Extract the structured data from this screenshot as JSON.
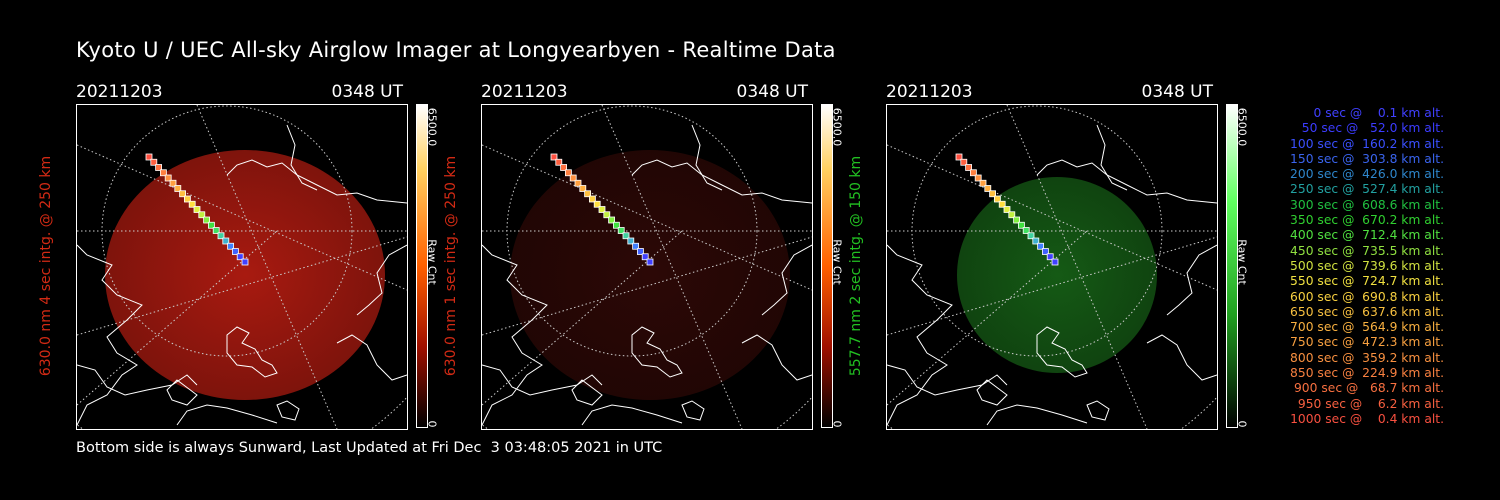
{
  "title": "Kyoto U / UEC All-sky Airglow Imager at Longyearbyen - Realtime Data",
  "panels": [
    {
      "date": "20211203",
      "time": "0348 UT",
      "ylabel": "630.0 nm 4 sec intg. @ 250 km",
      "ylabel_color": "#d22a14",
      "cbar_max": "6500.0",
      "cbar_min": "0",
      "cbar_label": "Raw Cnt",
      "channel": "red",
      "glow_color": "#a81a10"
    },
    {
      "date": "20211203",
      "time": "0348 UT",
      "ylabel": "630.0 nm 1 sec intg. @ 250 km",
      "ylabel_color": "#d22a14",
      "cbar_max": "6500.0",
      "cbar_min": "0",
      "cbar_label": "Raw Cnt",
      "channel": "red",
      "glow_color": "#2c0806"
    },
    {
      "date": "20211203",
      "time": "0348 UT",
      "ylabel": "557.7 nm 2 sec intg. @ 150 km",
      "ylabel_color": "#22c022",
      "cbar_max": "6500.0",
      "cbar_min": "0",
      "cbar_label": "Raw Cnt",
      "channel": "green",
      "glow_color": "#155a15"
    }
  ],
  "legend": [
    {
      "text": "   0 sec @    0.1 km alt.",
      "color": "#4040ff"
    },
    {
      "text": "  50 sec @   52.0 km alt.",
      "color": "#3c3cff"
    },
    {
      "text": " 100 sec @  160.2 km alt.",
      "color": "#3a50ff"
    },
    {
      "text": " 150 sec @  303.8 km alt.",
      "color": "#3a64ee"
    },
    {
      "text": " 200 sec @  426.0 km alt.",
      "color": "#2e86cc"
    },
    {
      "text": " 250 sec @  527.4 km alt.",
      "color": "#22a0a0"
    },
    {
      "text": " 300 sec @  608.6 km alt.",
      "color": "#20c040"
    },
    {
      "text": " 350 sec @  670.2 km alt.",
      "color": "#30d030"
    },
    {
      "text": " 400 sec @  712.4 km alt.",
      "color": "#50e040"
    },
    {
      "text": " 450 sec @  735.5 km alt.",
      "color": "#90e040"
    },
    {
      "text": " 500 sec @  739.6 km alt.",
      "color": "#d0e040"
    },
    {
      "text": " 550 sec @  724.7 km alt.",
      "color": "#f0e040"
    },
    {
      "text": " 600 sec @  690.8 km alt.",
      "color": "#f8d040"
    },
    {
      "text": " 650 sec @  637.6 km alt.",
      "color": "#f8c040"
    },
    {
      "text": " 700 sec @  564.9 km alt.",
      "color": "#f8b040"
    },
    {
      "text": " 750 sec @  472.3 km alt.",
      "color": "#f8a040"
    },
    {
      "text": " 800 sec @  359.2 km alt.",
      "color": "#f89040"
    },
    {
      "text": " 850 sec @  224.9 km alt.",
      "color": "#f88040"
    },
    {
      "text": " 900 sec @   68.7 km alt.",
      "color": "#f87040"
    },
    {
      "text": " 950 sec @    6.2 km alt.",
      "color": "#f86040"
    },
    {
      "text": "1000 sec @    0.4 km alt.",
      "color": "#f85040"
    }
  ],
  "footer": "Bottom side is always Sunward, Last Updated at Fri Dec  3 03:48:05 2021 in UTC",
  "track_colors": [
    "#ff5040",
    "#ff6040",
    "#ff7040",
    "#ff8040",
    "#ff9040",
    "#ffa040",
    "#ffb040",
    "#ffc040",
    "#ffd040",
    "#ffe040",
    "#e0f040",
    "#c0f040",
    "#80f040",
    "#40e040",
    "#40e060",
    "#40d0a0",
    "#40b0d0",
    "#4080ff",
    "#4060ff",
    "#4040ff",
    "#4040ff"
  ]
}
